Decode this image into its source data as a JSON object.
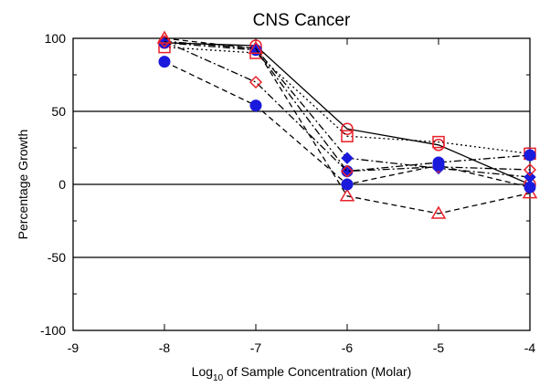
{
  "chart_data": {
    "type": "line",
    "title": "CNS Cancer",
    "ylabel": "Percentage Growth",
    "xlabel_prefix": "Log",
    "xlabel_sub": "10",
    "xlabel_suffix": " of Sample Concentration (Molar)",
    "xlim": [
      -9,
      -4
    ],
    "ylim": [
      -100,
      100
    ],
    "xticks": [
      -9,
      -8,
      -7,
      -6,
      -5,
      -4
    ],
    "xtick_labels": [
      "-9",
      "-8",
      "-7",
      "-6",
      "-5",
      "-4"
    ],
    "yticks": [
      100,
      50,
      0,
      -50,
      -100
    ],
    "ytick_labels": [
      "100",
      "50",
      "0",
      "-50",
      "-100"
    ],
    "grid_lines_y": [
      50,
      0,
      -50
    ],
    "x": [
      -8,
      -7,
      -6,
      -5,
      -4
    ],
    "series": [
      {
        "marker": "circle-open",
        "color": "#e8202a",
        "dash": "solid",
        "values": [
          97,
          95,
          38,
          27,
          0
        ]
      },
      {
        "marker": "square-open",
        "color": "#e8202a",
        "dash": "dot",
        "values": [
          94,
          90,
          33,
          29,
          21
        ]
      },
      {
        "marker": "circle-filled",
        "color": "#1a1adc",
        "dash": "dashdot",
        "values": [
          97,
          92,
          9,
          15,
          20
        ]
      },
      {
        "marker": "diamond-filled",
        "color": "#1a1adc",
        "dash": "dashdot",
        "values": [
          98,
          93,
          18,
          11,
          5
        ]
      },
      {
        "marker": "diamond-open",
        "color": "#e8202a",
        "dash": "dashdot",
        "values": [
          98,
          70,
          9,
          12,
          10
        ]
      },
      {
        "marker": "triangle-open",
        "color": "#e8202a",
        "dash": "dash",
        "values": [
          100,
          93,
          -8,
          -20,
          -6
        ]
      },
      {
        "marker": "circle-filled",
        "color": "#1a1adc",
        "dash": "dash",
        "values": [
          84,
          54,
          0,
          13,
          -2
        ]
      }
    ]
  }
}
